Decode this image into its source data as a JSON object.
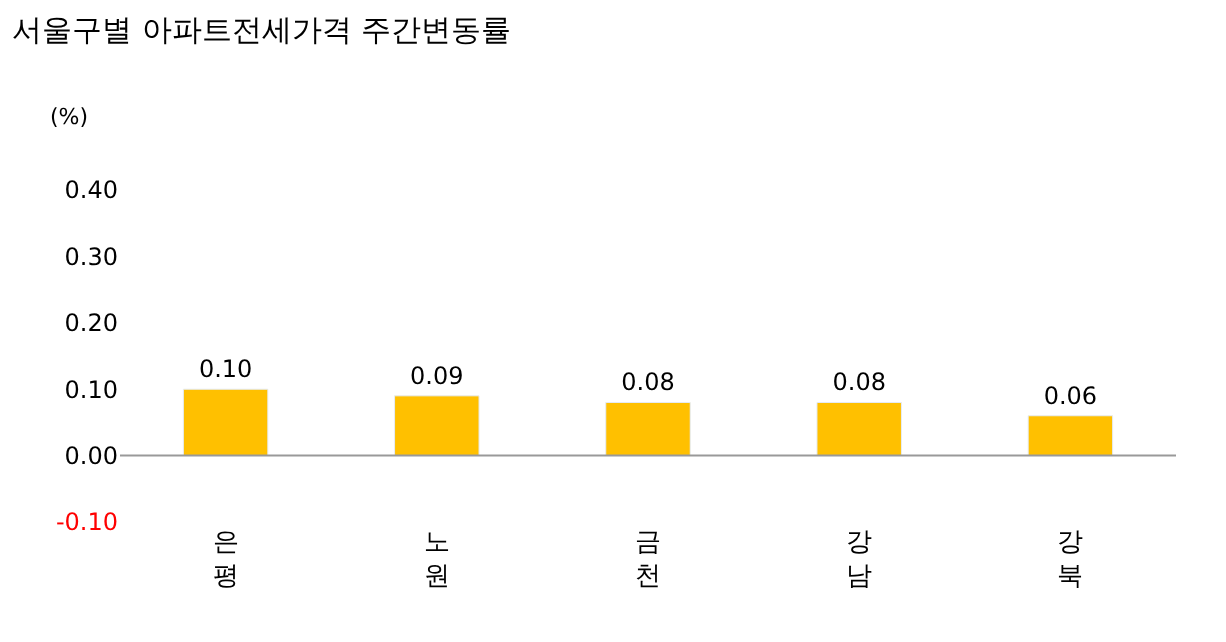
{
  "chart_data": {
    "type": "bar",
    "title": "서울구별 아파트전세가격 주간변동률",
    "ylabel": "(%)",
    "categories": [
      "은평",
      "노원",
      "금천",
      "강남",
      "강북"
    ],
    "values": [
      0.1,
      0.09,
      0.08,
      0.08,
      0.06
    ],
    "color": "#ffc000",
    "ylim": [
      -0.1,
      0.4
    ],
    "yticks": [
      {
        "value": -0.1,
        "label": "-0.10"
      },
      {
        "value": 0,
        "label": "0.00"
      },
      {
        "value": 0.1,
        "label": "0.10"
      },
      {
        "value": 0.2,
        "label": "0.20"
      },
      {
        "value": 0.3,
        "label": "0.30"
      },
      {
        "value": 0.4,
        "label": "0.40"
      }
    ],
    "value_labels": [
      "0.10",
      "0.09",
      "0.08",
      "0.08",
      "0.06"
    ],
    "ref_lines": [
      {
        "axis": "y",
        "value": 0,
        "color": "#999999"
      }
    ],
    "grid": false,
    "legend": false
  }
}
